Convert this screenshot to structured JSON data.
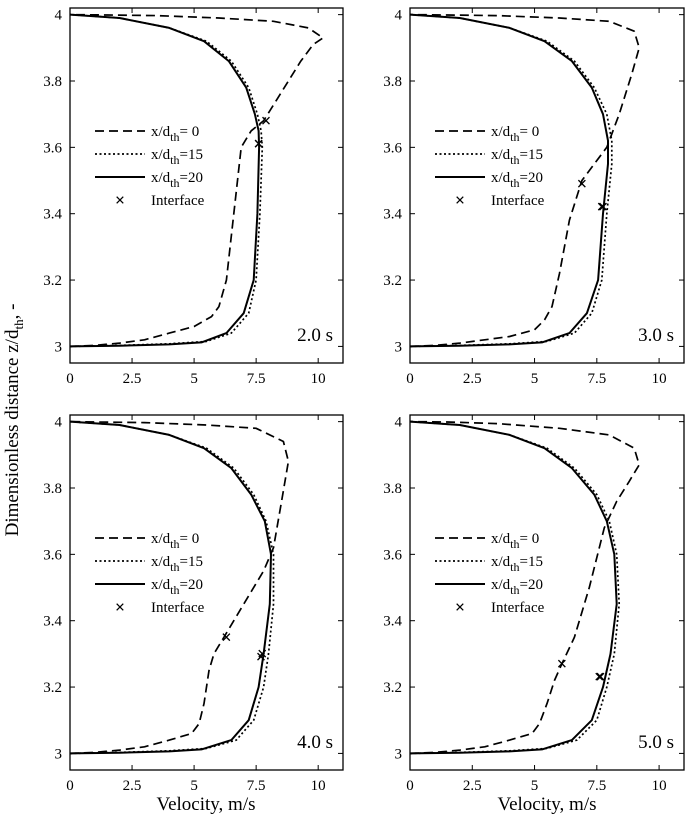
{
  "figure": {
    "ylabel": "Dimensionless distance z/d",
    "ylabel_sub": "th",
    "ylabel_suffix": ", -",
    "xlabel": "Velocity, m/s"
  },
  "legend": {
    "prefix": "x/d",
    "sub": "th",
    "items": [
      {
        "key": "s0",
        "value": "= 0",
        "style": "dashed"
      },
      {
        "key": "s15",
        "value": "=15",
        "style": "dotted"
      },
      {
        "key": "s20",
        "value": "=20",
        "style": "solid"
      }
    ],
    "interface_label": "Interface",
    "interface_marker": "×"
  },
  "chart_data": [
    {
      "type": "line",
      "time_label": "2.0 s",
      "xlim": [
        0,
        11
      ],
      "ylim": [
        2.95,
        4.02
      ],
      "xticks": [
        "0",
        "2.5",
        "5",
        "7.5",
        "10"
      ],
      "yticks": [
        "3",
        "3.2",
        "3.4",
        "3.6",
        "3.8",
        "4"
      ],
      "series": [
        {
          "name": "x/dth = 0",
          "style": "dashed",
          "x": [
            0,
            1,
            2,
            3,
            4,
            5,
            5.7,
            6.0,
            6.3,
            6.6,
            6.9,
            7.3,
            7.8,
            8.3,
            8.8,
            9.3,
            9.8,
            10.2,
            9.6,
            8.2,
            6.0,
            3.5,
            1.5,
            0
          ],
          "y": [
            3.0,
            3.003,
            3.01,
            3.02,
            3.04,
            3.06,
            3.09,
            3.12,
            3.2,
            3.4,
            3.6,
            3.65,
            3.68,
            3.74,
            3.8,
            3.86,
            3.91,
            3.93,
            3.96,
            3.98,
            3.99,
            3.997,
            3.999,
            4.0
          ]
        },
        {
          "name": "x/dth = 15",
          "style": "dotted",
          "x": [
            0,
            2,
            4,
            5.5,
            6.5,
            7.2,
            7.5,
            7.65,
            7.75,
            7.7,
            7.55,
            7.2,
            6.5,
            5.5,
            4,
            2,
            0
          ],
          "y": [
            3.0,
            3.003,
            3.008,
            3.015,
            3.04,
            3.1,
            3.2,
            3.4,
            3.6,
            3.65,
            3.7,
            3.78,
            3.86,
            3.92,
            3.96,
            3.99,
            4.0
          ]
        },
        {
          "name": "x/dth = 20",
          "style": "solid",
          "x": [
            0,
            2,
            4,
            5.3,
            6.3,
            7.0,
            7.4,
            7.55,
            7.62,
            7.6,
            7.45,
            7.1,
            6.4,
            5.4,
            4,
            2,
            0
          ],
          "y": [
            3.0,
            3.002,
            3.006,
            3.012,
            3.04,
            3.1,
            3.2,
            3.4,
            3.6,
            3.65,
            3.7,
            3.78,
            3.86,
            3.92,
            3.96,
            3.99,
            4.0
          ]
        }
      ],
      "interface_points": [
        {
          "x": 7.9,
          "y": 3.68
        },
        {
          "x": 7.6,
          "y": 3.61
        },
        {
          "x": 7.6,
          "y": 3.61
        }
      ]
    },
    {
      "type": "line",
      "time_label": "3.0 s",
      "xlim": [
        0,
        11
      ],
      "ylim": [
        2.95,
        4.02
      ],
      "xticks": [
        "0",
        "2.5",
        "5",
        "7.5",
        "10"
      ],
      "yticks": [
        "3",
        "3.2",
        "3.4",
        "3.6",
        "3.8",
        "4"
      ],
      "series": [
        {
          "name": "x/dth = 0",
          "style": "dashed",
          "x": [
            0,
            1,
            2,
            3,
            4,
            5,
            5.4,
            5.7,
            6.0,
            6.4,
            6.9,
            7.4,
            7.9,
            8.4,
            8.9,
            9.2,
            9.0,
            8.0,
            6.0,
            3.5,
            1.5,
            0
          ],
          "y": [
            3.0,
            3.003,
            3.01,
            3.02,
            3.03,
            3.05,
            3.08,
            3.12,
            3.22,
            3.38,
            3.5,
            3.55,
            3.6,
            3.7,
            3.82,
            3.9,
            3.95,
            3.98,
            3.99,
            3.997,
            3.999,
            4.0
          ]
        },
        {
          "name": "x/dth = 15",
          "style": "dotted",
          "x": [
            0,
            2,
            4,
            5.5,
            6.6,
            7.3,
            7.7,
            7.9,
            8.1,
            8.1,
            7.9,
            7.4,
            6.6,
            5.5,
            4,
            2,
            0
          ],
          "y": [
            3.0,
            3.003,
            3.008,
            3.015,
            3.04,
            3.1,
            3.2,
            3.4,
            3.55,
            3.62,
            3.7,
            3.78,
            3.86,
            3.92,
            3.96,
            3.99,
            4.0
          ]
        },
        {
          "name": "x/dth = 20",
          "style": "solid",
          "x": [
            0,
            2,
            4,
            5.3,
            6.4,
            7.1,
            7.55,
            7.75,
            7.95,
            7.95,
            7.75,
            7.3,
            6.5,
            5.4,
            4,
            2,
            0
          ],
          "y": [
            3.0,
            3.002,
            3.006,
            3.012,
            3.04,
            3.1,
            3.2,
            3.4,
            3.55,
            3.62,
            3.7,
            3.78,
            3.86,
            3.92,
            3.96,
            3.99,
            4.0
          ]
        }
      ],
      "interface_points": [
        {
          "x": 6.9,
          "y": 3.49
        },
        {
          "x": 7.75,
          "y": 3.42
        },
        {
          "x": 7.7,
          "y": 3.42
        }
      ]
    },
    {
      "type": "line",
      "time_label": "4.0 s",
      "xlim": [
        0,
        11
      ],
      "ylim": [
        2.95,
        4.02
      ],
      "xticks": [
        "0",
        "2.5",
        "5",
        "7.5",
        "10"
      ],
      "yticks": [
        "3",
        "3.2",
        "3.4",
        "3.6",
        "3.8",
        "4"
      ],
      "series": [
        {
          "name": "x/dth = 0",
          "style": "dashed",
          "x": [
            0,
            1,
            2,
            3,
            4,
            4.9,
            5.2,
            5.4,
            5.6,
            5.8,
            6.2,
            7.0,
            7.8,
            8.2,
            8.5,
            8.8,
            8.6,
            7.5,
            5.5,
            3.0,
            1.0,
            0
          ],
          "y": [
            3.0,
            3.003,
            3.01,
            3.02,
            3.04,
            3.06,
            3.09,
            3.15,
            3.25,
            3.3,
            3.35,
            3.45,
            3.55,
            3.62,
            3.75,
            3.88,
            3.94,
            3.98,
            3.99,
            3.997,
            3.999,
            4.0
          ]
        },
        {
          "name": "x/dth = 15",
          "style": "dotted",
          "x": [
            0,
            2,
            4,
            5.5,
            6.7,
            7.4,
            7.8,
            8.0,
            8.2,
            8.2,
            7.9,
            7.4,
            6.6,
            5.5,
            4,
            2,
            0
          ],
          "y": [
            3.0,
            3.003,
            3.008,
            3.015,
            3.04,
            3.1,
            3.2,
            3.3,
            3.45,
            3.6,
            3.7,
            3.78,
            3.86,
            3.92,
            3.96,
            3.99,
            4.0
          ]
        },
        {
          "name": "x/dth = 20",
          "style": "solid",
          "x": [
            0,
            2,
            4,
            5.3,
            6.5,
            7.2,
            7.6,
            7.8,
            8.05,
            8.1,
            7.85,
            7.3,
            6.5,
            5.4,
            4,
            2,
            0
          ],
          "y": [
            3.0,
            3.002,
            3.006,
            3.012,
            3.04,
            3.1,
            3.2,
            3.3,
            3.45,
            3.6,
            3.7,
            3.78,
            3.86,
            3.92,
            3.96,
            3.99,
            4.0
          ]
        }
      ],
      "interface_points": [
        {
          "x": 6.3,
          "y": 3.35
        },
        {
          "x": 7.75,
          "y": 3.3
        },
        {
          "x": 7.7,
          "y": 3.29
        }
      ]
    },
    {
      "type": "line",
      "time_label": "5.0 s",
      "xlim": [
        0,
        11
      ],
      "ylim": [
        2.95,
        4.02
      ],
      "xticks": [
        "0",
        "2.5",
        "5",
        "7.5",
        "10"
      ],
      "yticks": [
        "3",
        "3.2",
        "3.4",
        "3.6",
        "3.8",
        "4"
      ],
      "series": [
        {
          "name": "x/dth = 0",
          "style": "dashed",
          "x": [
            0,
            1,
            2,
            3,
            4,
            4.9,
            5.2,
            5.5,
            5.8,
            6.1,
            6.6,
            7.2,
            7.8,
            8.3,
            8.8,
            9.2,
            9.0,
            8.0,
            6.0,
            3.5,
            1.5,
            0
          ],
          "y": [
            3.0,
            3.003,
            3.01,
            3.02,
            3.04,
            3.06,
            3.09,
            3.15,
            3.22,
            3.27,
            3.35,
            3.5,
            3.68,
            3.76,
            3.82,
            3.87,
            3.92,
            3.96,
            3.98,
            3.994,
            3.999,
            4.0
          ]
        },
        {
          "name": "x/dth = 15",
          "style": "dotted",
          "x": [
            0,
            2,
            4,
            5.5,
            6.7,
            7.5,
            7.9,
            8.2,
            8.4,
            8.3,
            8.0,
            7.5,
            6.6,
            5.5,
            4,
            2,
            0
          ],
          "y": [
            3.0,
            3.003,
            3.008,
            3.015,
            3.04,
            3.1,
            3.2,
            3.3,
            3.45,
            3.6,
            3.7,
            3.78,
            3.86,
            3.92,
            3.96,
            3.99,
            4.0
          ]
        },
        {
          "name": "x/dth = 20",
          "style": "solid",
          "x": [
            0,
            2,
            4,
            5.3,
            6.5,
            7.3,
            7.75,
            8.05,
            8.3,
            8.2,
            7.9,
            7.4,
            6.5,
            5.4,
            4,
            2,
            0
          ],
          "y": [
            3.0,
            3.002,
            3.006,
            3.012,
            3.04,
            3.1,
            3.2,
            3.3,
            3.45,
            3.6,
            3.7,
            3.78,
            3.86,
            3.92,
            3.96,
            3.99,
            4.0
          ]
        }
      ],
      "interface_points": [
        {
          "x": 6.1,
          "y": 3.27
        },
        {
          "x": 7.65,
          "y": 3.23
        },
        {
          "x": 7.6,
          "y": 3.23
        }
      ]
    }
  ]
}
